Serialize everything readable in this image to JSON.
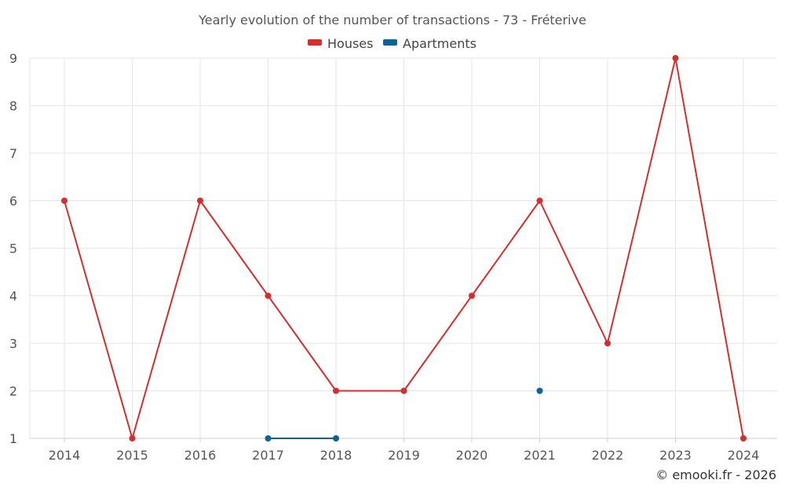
{
  "chart_data": {
    "type": "line",
    "title": "Yearly evolution of the number of transactions - 73 - Fréterive",
    "xlabel": "",
    "ylabel": "",
    "categories": [
      "2014",
      "2015",
      "2016",
      "2017",
      "2018",
      "2019",
      "2020",
      "2021",
      "2022",
      "2023",
      "2024"
    ],
    "ylim": [
      1,
      9
    ],
    "yticks": [
      1,
      2,
      3,
      4,
      5,
      6,
      7,
      8,
      9
    ],
    "grid": true,
    "legend_position": "top-center",
    "series": [
      {
        "name": "Houses",
        "color": "#d32f2f",
        "values": [
          6,
          1,
          6,
          4,
          2,
          2,
          4,
          6,
          3,
          9,
          1
        ]
      },
      {
        "name": "Apartments",
        "color": "#0a6496",
        "values": [
          null,
          null,
          null,
          1,
          1,
          null,
          null,
          2,
          null,
          null,
          null
        ]
      }
    ]
  },
  "credit": "© emooki.fr - 2026"
}
